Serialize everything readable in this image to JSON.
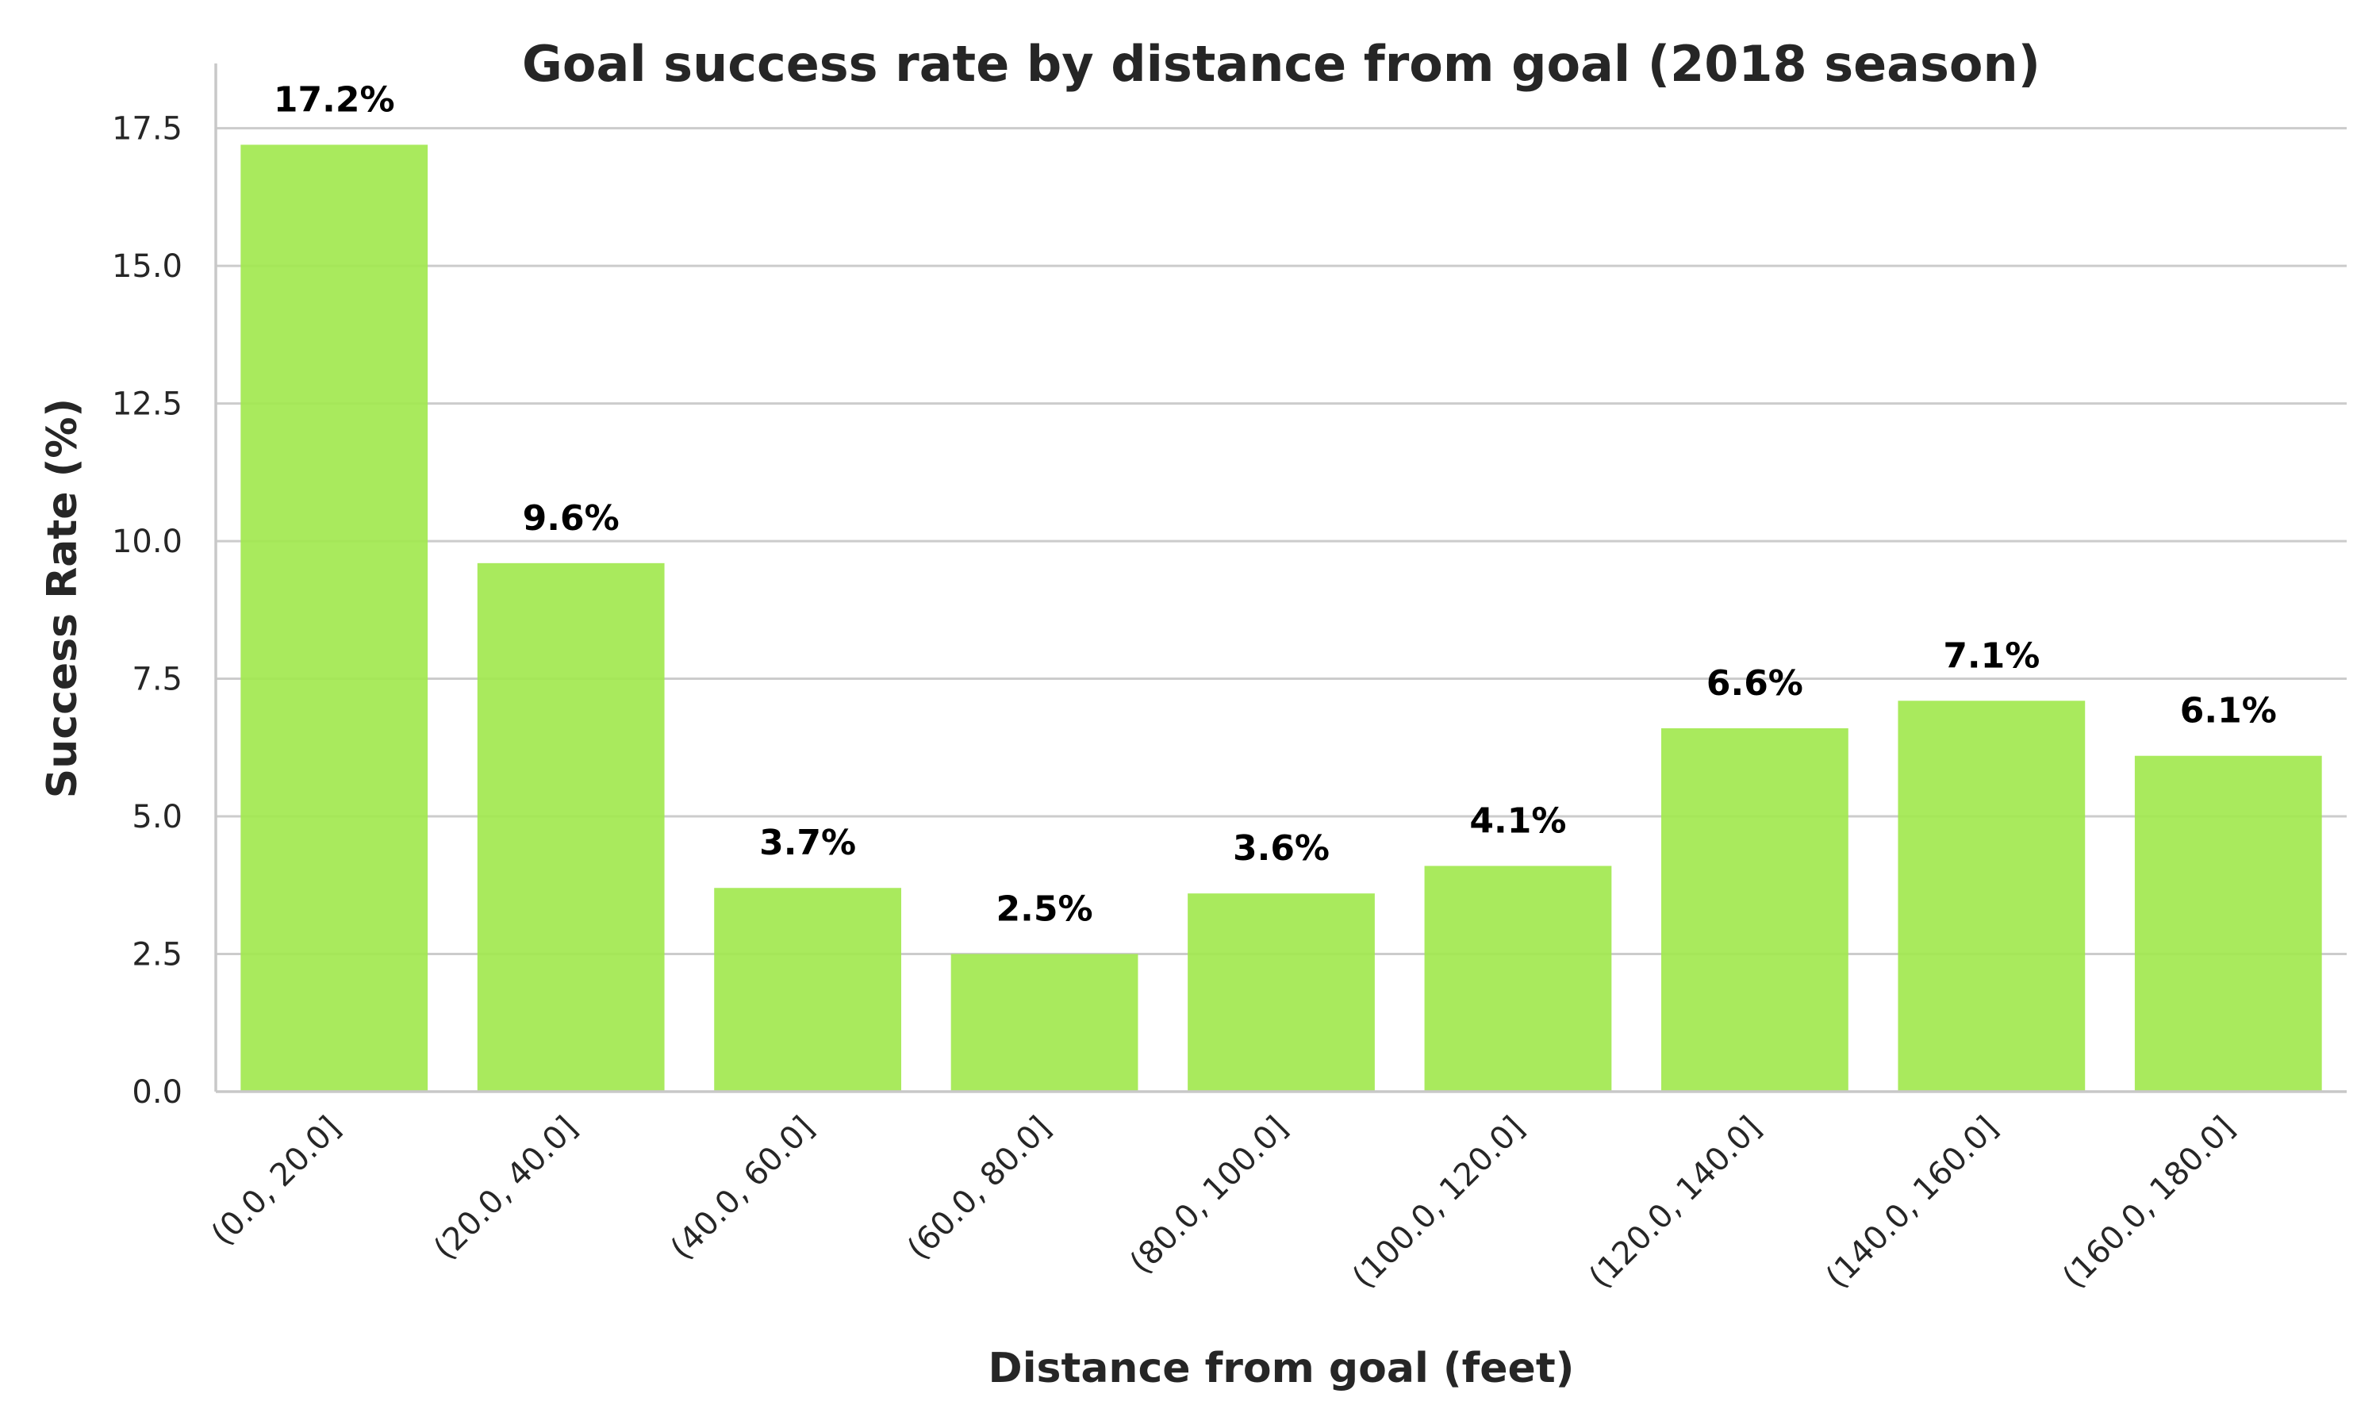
{
  "chart_data": {
    "type": "bar",
    "title": "Goal success rate by distance from goal (2018 season)",
    "xlabel": "Distance from goal (feet)",
    "ylabel": "Success Rate (%)",
    "categories": [
      "(0.0, 20.0]",
      "(20.0, 40.0]",
      "(40.0, 60.0]",
      "(60.0, 80.0]",
      "(80.0, 100.0]",
      "(100.0, 120.0]",
      "(120.0, 140.0]",
      "(140.0, 160.0]",
      "(160.0, 180.0]"
    ],
    "values": [
      17.2,
      9.6,
      3.7,
      2.5,
      3.6,
      4.1,
      6.6,
      7.1,
      6.1
    ],
    "data_labels": [
      "17.2%",
      "9.6%",
      "3.7%",
      "2.5%",
      "3.6%",
      "4.1%",
      "6.6%",
      "7.1%",
      "6.1%"
    ],
    "yticks": [
      "0.0",
      "2.5",
      "5.0",
      "7.5",
      "10.0",
      "12.5",
      "15.0",
      "17.5"
    ],
    "ylim": [
      0,
      18.1
    ],
    "grid": "horizontal",
    "bar_color": "#a2e84f"
  }
}
